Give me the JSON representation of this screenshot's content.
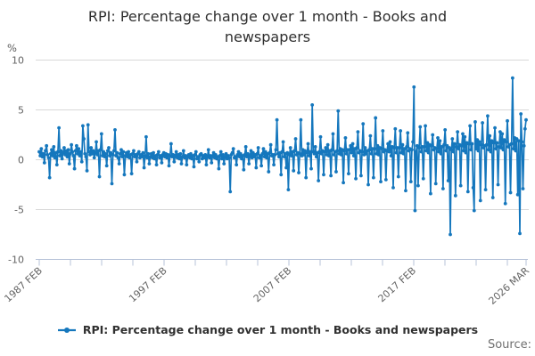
{
  "title": "RPI: Percentage change over 1 month - Books and newspapers",
  "unit_label": "%",
  "legend": {
    "label": "RPI: Percentage change over 1 month - Books and newspapers"
  },
  "source_label": "Source:",
  "colors": {
    "series": "#1577bd",
    "grid": "#d8d8d8",
    "axis": "#b7c3d8",
    "tick_text": "#636363",
    "title_text": "#2f2f2f",
    "source_text": "#707070"
  },
  "chart_data": {
    "type": "line",
    "title": "RPI: Percentage change over 1 month - Books and newspapers",
    "xlabel": "",
    "ylabel": "%",
    "ylim": [
      -10,
      10
    ],
    "yticks": [
      10,
      5,
      0,
      -5,
      -10
    ],
    "grid": "horizontal",
    "legend_position": "bottom",
    "frequency": "monthly",
    "x_start": "1987 FEB",
    "x_end": "2026 MAR",
    "x_tick_labels": [
      {
        "label": "1987 FEB",
        "month_index": 0
      },
      {
        "label": "1997 FEB",
        "month_index": 120
      },
      {
        "label": "2007 FEB",
        "month_index": 240
      },
      {
        "label": "2017 FEB",
        "month_index": 360
      },
      {
        "label": "2026 MAR",
        "month_index": 469
      }
    ],
    "series": [
      {
        "name": "RPI: Percentage change over 1 month - Books and newspapers",
        "values": [
          0.8,
          0.4,
          1.1,
          0.3,
          0.6,
          -0.3,
          0.9,
          1.4,
          0.5,
          0.2,
          -1.8,
          0.6,
          1.0,
          0.4,
          1.3,
          0.2,
          0.7,
          -0.5,
          0.8,
          3.2,
          0.4,
          0.9,
          0.1,
          0.7,
          1.2,
          0.5,
          0.9,
          0.3,
          1.0,
          -0.4,
          0.6,
          1.5,
          0.8,
          0.4,
          -0.9,
          0.9,
          1.4,
          0.6,
          1.1,
          0.4,
          0.8,
          -0.2,
          3.4,
          2.1,
          0.6,
          0.3,
          -1.1,
          3.5,
          0.8,
          0.5,
          1.2,
          0.6,
          0.9,
          0.2,
          0.7,
          1.8,
          0.5,
          0.9,
          -1.7,
          1.0,
          2.6,
          0.4,
          0.8,
          0.3,
          0.6,
          -0.6,
          0.9,
          1.2,
          0.4,
          0.7,
          -2.4,
          0.5,
          0.9,
          3.0,
          0.4,
          0.7,
          0.2,
          -0.4,
          0.6,
          1.0,
          0.3,
          0.8,
          -1.5,
          0.4,
          0.7,
          0.3,
          0.8,
          0.2,
          0.5,
          -1.4,
          0.6,
          0.9,
          0.3,
          0.5,
          -0.2,
          0.6,
          0.8,
          0.2,
          0.5,
          0.3,
          0.7,
          -0.8,
          0.4,
          2.3,
          0.2,
          0.6,
          -0.4,
          0.3,
          0.6,
          0.2,
          0.7,
          0.1,
          0.4,
          -0.5,
          0.5,
          0.8,
          0.2,
          0.4,
          -0.3,
          0.5,
          0.7,
          0.3,
          0.6,
          0.2,
          0.5,
          -0.6,
          0.4,
          1.6,
          0.3,
          0.5,
          -0.2,
          0.4,
          0.8,
          0.2,
          0.5,
          0.1,
          0.6,
          -0.4,
          0.3,
          0.9,
          0.2,
          0.4,
          -0.5,
          0.3,
          0.5,
          0.2,
          0.6,
          0.1,
          0.4,
          -0.7,
          0.5,
          0.8,
          0.1,
          0.3,
          -0.2,
          0.5,
          0.6,
          0.1,
          0.4,
          0.2,
          0.5,
          -0.5,
          0.3,
          1.0,
          0.2,
          0.4,
          -0.3,
          0.4,
          0.7,
          0.2,
          0.5,
          0.1,
          0.3,
          -0.9,
          0.4,
          0.8,
          0.1,
          0.5,
          -0.4,
          0.3,
          0.6,
          0.1,
          0.4,
          0.2,
          -3.2,
          0.5,
          0.7,
          1.1,
          0.2,
          0.3,
          -0.5,
          0.5,
          0.8,
          0.3,
          0.6,
          0.1,
          0.4,
          -1.0,
          0.5,
          1.3,
          0.3,
          0.6,
          -0.4,
          0.4,
          0.9,
          0.2,
          0.7,
          0.3,
          0.5,
          -0.8,
          0.6,
          1.2,
          0.2,
          0.4,
          -0.6,
          0.6,
          1.1,
          0.3,
          0.8,
          0.2,
          0.6,
          -1.2,
          0.7,
          1.5,
          0.4,
          0.5,
          -0.5,
          0.5,
          1.0,
          4.0,
          0.6,
          0.3,
          0.7,
          -1.5,
          0.8,
          1.8,
          0.3,
          0.6,
          -0.8,
          0.7,
          -3.0,
          0.5,
          1.2,
          0.4,
          0.8,
          -1.1,
          0.9,
          2.1,
          0.5,
          0.7,
          -1.3,
          0.6,
          4.0,
          0.4,
          1.0,
          0.5,
          0.9,
          -1.8,
          0.7,
          1.6,
          0.4,
          0.8,
          -0.9,
          5.5,
          0.8,
          0.6,
          1.3,
          0.3,
          0.7,
          -2.1,
          0.8,
          2.3,
          0.6,
          0.9,
          -1.5,
          0.8,
          1.2,
          0.5,
          1.5,
          0.4,
          0.9,
          -1.6,
          1.0,
          2.6,
          0.5,
          0.8,
          -1.2,
          0.9,
          4.9,
          0.6,
          1.1,
          0.5,
          1.0,
          -2.3,
          0.9,
          2.2,
          0.6,
          1.0,
          -1.4,
          1.0,
          1.4,
          0.7,
          1.6,
          0.4,
          1.1,
          -1.9,
          1.2,
          2.8,
          0.7,
          0.9,
          -1.6,
          0.8,
          3.6,
          0.5,
          1.2,
          0.6,
          0.9,
          -2.5,
          1.0,
          2.4,
          0.6,
          1.1,
          -1.8,
          1.1,
          4.2,
          0.6,
          1.4,
          0.5,
          1.2,
          -2.2,
          1.1,
          2.9,
          0.8,
          1.0,
          -2.0,
          0.9,
          1.6,
          0.8,
          1.8,
          0.4,
          1.3,
          -2.8,
          1.2,
          3.1,
          0.7,
          1.2,
          -1.7,
          1.2,
          2.9,
          0.7,
          1.5,
          0.6,
          1.1,
          -3.1,
          1.3,
          2.7,
          0.9,
          1.1,
          -2.2,
          1.0,
          1.8,
          7.3,
          -5.1,
          0.8,
          1.4,
          -2.6,
          1.2,
          3.3,
          0.8,
          1.3,
          -1.9,
          1.3,
          3.4,
          0.9,
          1.7,
          0.7,
          1.5,
          -3.4,
          1.4,
          2.5,
          1.0,
          1.2,
          -2.4,
          1.1,
          2.2,
          0.8,
          1.9,
          0.6,
          1.3,
          -2.9,
          1.5,
          3.0,
          0.9,
          1.4,
          -2.1,
          1.2,
          -7.5,
          1.0,
          2.1,
          0.8,
          1.6,
          -3.6,
          1.3,
          2.8,
          1.1,
          1.5,
          -2.6,
          1.4,
          2.6,
          0.9,
          2.3,
          0.7,
          1.7,
          -3.2,
          1.6,
          3.4,
          1.0,
          1.6,
          -2.8,
          -5.1,
          3.8,
          1.1,
          2.0,
          0.9,
          1.8,
          -4.1,
          1.5,
          3.7,
          1.2,
          1.4,
          -3.0,
          1.5,
          4.4,
          1.0,
          2.4,
          0.8,
          1.9,
          -3.8,
          1.7,
          3.2,
          1.1,
          1.7,
          -2.5,
          1.3,
          2.8,
          1.2,
          2.6,
          1.0,
          2.0,
          -4.4,
          1.8,
          3.9,
          1.3,
          1.5,
          -3.3,
          1.6,
          8.2,
          1.1,
          2.2,
          0.9,
          2.1,
          -3.5,
          1.9,
          -7.4,
          4.6,
          1.8,
          -2.9,
          1.4,
          3.1,
          4.0
        ]
      }
    ]
  }
}
